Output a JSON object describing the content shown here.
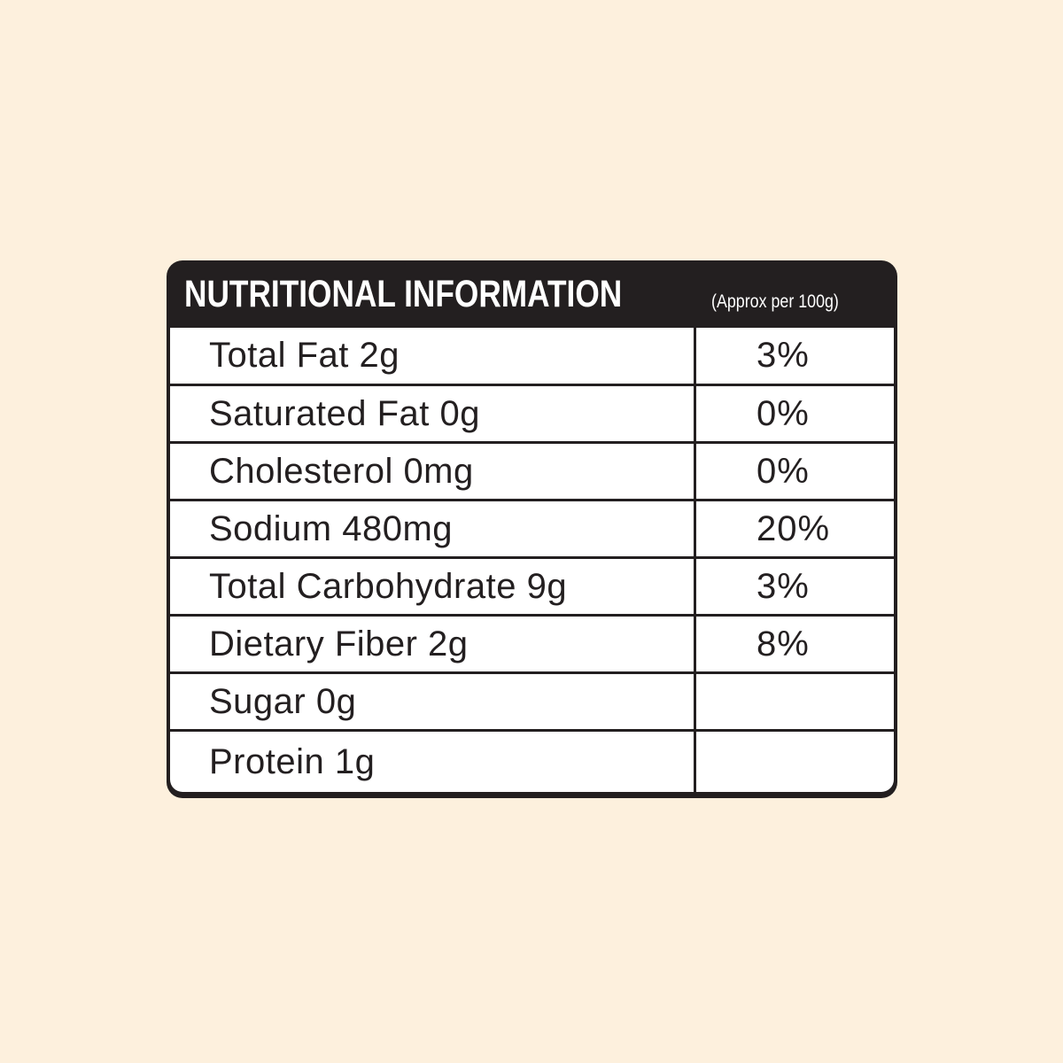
{
  "header": {
    "title": "NUTRITIONAL INFORMATION",
    "subtitle": "(Approx per 100g)"
  },
  "rows": [
    {
      "name": "Total Fat 2g",
      "pct": "3%"
    },
    {
      "name": "Saturated Fat 0g",
      "pct": "0%"
    },
    {
      "name": "Cholesterol 0mg",
      "pct": "0%"
    },
    {
      "name": "Sodium 480mg",
      "pct": "20%"
    },
    {
      "name": "Total Carbohydrate 9g",
      "pct": "3%"
    },
    {
      "name": "Dietary Fiber 2g",
      "pct": "8%"
    },
    {
      "name": "Sugar 0g",
      "pct": ""
    },
    {
      "name": "Protein 1g",
      "pct": ""
    }
  ],
  "colors": {
    "background": "#fdf0dd",
    "panel": "#231f20"
  }
}
